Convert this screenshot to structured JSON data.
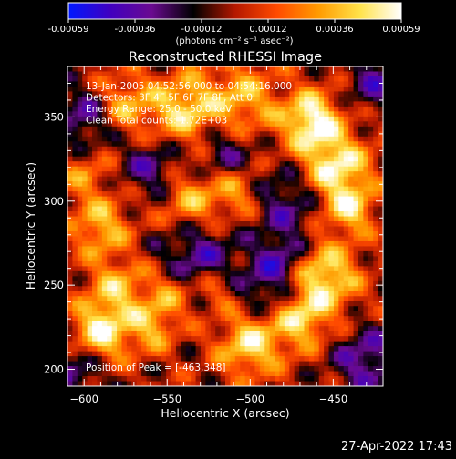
{
  "chart_data": {
    "type": "heatmap",
    "title": "Reconstructed RHESSI Image",
    "xlabel": "Heliocentric X (arcsec)",
    "ylabel": "Heliocentric Y (arcsec)",
    "xlim": [
      -610,
      -420
    ],
    "ylim": [
      190,
      380
    ],
    "xticks": [
      -600,
      -550,
      -500,
      -450
    ],
    "yticks": [
      200,
      250,
      300,
      350
    ],
    "colorbar": {
      "ticks": [
        "-0.00059",
        "-0.00036",
        "-0.00012",
        "0.00012",
        "0.00036",
        "0.00059"
      ],
      "units": "(photons cm⁻² s⁻¹ asec⁻²)",
      "range": [
        -0.00059,
        0.00059
      ],
      "colors": [
        "#0018ff",
        "#4000c0",
        "#6a0a90",
        "#000000",
        "#b41800",
        "#ff4a00",
        "#ff9a00",
        "#ffe24a",
        "#ffffff"
      ]
    },
    "annotations": [
      "13-Jan-2005 04:52:56.000 to 04:54:16.000",
      "Detectors: 3F 4F 5F 6F 7F 8F, Att 0",
      "Energy Range: 25.0 - 50.0 keV",
      "Clean     Total counts: 1.72E+03"
    ],
    "peak_label": "Position of Peak = [-463,348]",
    "peak": [
      -463,
      348
    ],
    "sources": [
      {
        "x": -463,
        "y": 348,
        "amp": 1.0,
        "w": 12
      },
      {
        "x": -448,
        "y": 320,
        "amp": 0.9,
        "w": 14
      },
      {
        "x": -440,
        "y": 295,
        "amp": 0.7,
        "w": 10
      },
      {
        "x": -455,
        "y": 255,
        "amp": 0.85,
        "w": 14
      },
      {
        "x": -470,
        "y": 230,
        "amp": 0.75,
        "w": 12
      },
      {
        "x": -500,
        "y": 215,
        "amp": 0.8,
        "w": 13
      },
      {
        "x": -505,
        "y": 360,
        "amp": 0.6,
        "w": 15
      },
      {
        "x": -540,
        "y": 355,
        "amp": 0.75,
        "w": 14
      },
      {
        "x": -575,
        "y": 358,
        "amp": 0.55,
        "w": 12
      },
      {
        "x": -535,
        "y": 300,
        "amp": 0.6,
        "w": 12
      },
      {
        "x": -508,
        "y": 305,
        "amp": 0.5,
        "w": 10
      },
      {
        "x": -590,
        "y": 285,
        "amp": 0.65,
        "w": 12
      },
      {
        "x": -580,
        "y": 248,
        "amp": 0.6,
        "w": 12
      },
      {
        "x": -590,
        "y": 222,
        "amp": 0.9,
        "w": 12
      },
      {
        "x": -560,
        "y": 225,
        "amp": 0.55,
        "w": 10
      },
      {
        "x": -548,
        "y": 245,
        "amp": 0.5,
        "w": 11
      },
      {
        "x": -520,
        "y": 248,
        "amp": 0.45,
        "w": 9
      },
      {
        "x": -600,
        "y": 315,
        "amp": 0.4,
        "w": 10
      },
      {
        "x": -532,
        "y": 265,
        "amp": -0.6,
        "w": 16
      },
      {
        "x": -488,
        "y": 250,
        "amp": -0.55,
        "w": 14
      },
      {
        "x": -478,
        "y": 300,
        "amp": -0.5,
        "w": 14
      },
      {
        "x": -515,
        "y": 330,
        "amp": -0.45,
        "w": 12
      },
      {
        "x": -560,
        "y": 320,
        "amp": -0.5,
        "w": 12
      },
      {
        "x": -600,
        "y": 350,
        "amp": -0.55,
        "w": 12
      },
      {
        "x": -605,
        "y": 200,
        "amp": -0.5,
        "w": 12
      },
      {
        "x": -430,
        "y": 205,
        "amp": -0.6,
        "w": 14
      },
      {
        "x": -425,
        "y": 370,
        "amp": -0.5,
        "w": 12
      },
      {
        "x": -480,
        "y": 270,
        "amp": -0.4,
        "w": 10
      }
    ]
  },
  "footer": {
    "timestamp": "27-Apr-2022 17:43"
  }
}
